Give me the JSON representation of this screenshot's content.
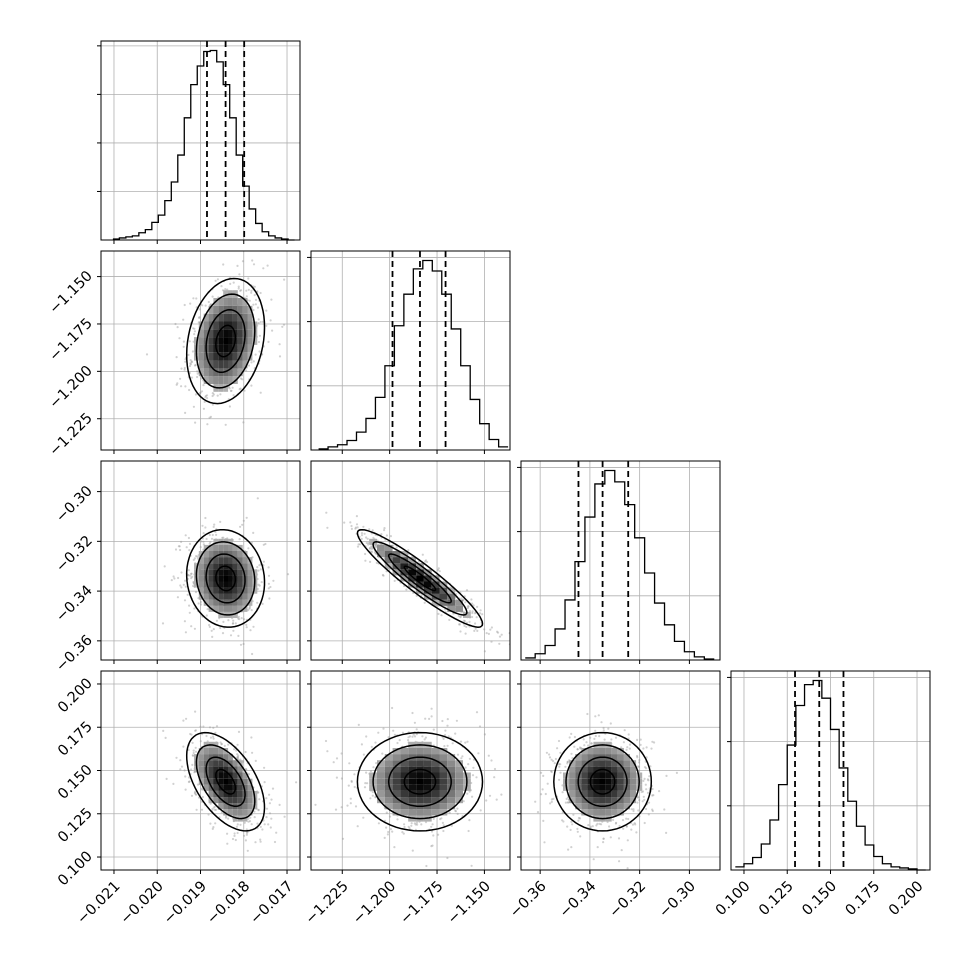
{
  "figure": {
    "type": "corner-plot",
    "description_free": true
  },
  "colors": {
    "axes": "#000000",
    "grid": "#b0b0b0",
    "histogram": "#000000",
    "scatter": "#9a9a9a",
    "contour": "#000000",
    "density_dark": "#000000",
    "density_light": "#ffffff"
  },
  "chart_data": [
    {
      "type": "histogram",
      "panel": [
        0,
        0
      ],
      "parameter_index": 0,
      "xlim": [
        -0.0213,
        -0.0167
      ],
      "bins": [
        -0.02095,
        -0.0208,
        -0.02065,
        -0.0205,
        -0.02035,
        -0.0202,
        -0.02005,
        -0.0199,
        -0.01975,
        -0.0196,
        -0.01945,
        -0.0193,
        -0.01915,
        -0.019,
        -0.01885,
        -0.0187,
        -0.01855,
        -0.0184,
        -0.01825,
        -0.0181,
        -0.01795,
        -0.0178,
        -0.01765,
        -0.0175,
        -0.01735,
        -0.0172,
        -0.01705,
        -0.0169
      ],
      "counts": [
        1,
        2,
        3,
        4,
        7,
        10,
        17,
        24,
        38,
        56,
        82,
        118,
        150,
        168,
        182,
        183,
        172,
        150,
        118,
        82,
        52,
        30,
        16,
        8,
        4,
        2,
        1,
        0
      ],
      "quantiles": [
        -0.01885,
        -0.01842,
        -0.01799
      ],
      "x_ticks": [
        -0.021,
        -0.02,
        -0.019,
        -0.018,
        -0.017
      ],
      "x_tick_labels": [
        "−0.021",
        "−0.020",
        "−0.019",
        "−0.018",
        "−0.017"
      ],
      "y_ticks_count": 4
    },
    {
      "type": "histogram",
      "panel": [
        1,
        1
      ],
      "parameter_index": 1,
      "xlim": [
        -1.2415,
        -1.1365
      ],
      "bins": [
        -1.235,
        -1.23,
        -1.225,
        -1.22,
        -1.215,
        -1.21,
        -1.205,
        -1.2,
        -1.195,
        -1.19,
        -1.185,
        -1.18,
        -1.175,
        -1.17,
        -1.165,
        -1.16,
        -1.155,
        -1.15,
        -1.145,
        -1.14
      ],
      "counts": [
        1,
        3,
        5,
        9,
        17,
        30,
        50,
        80,
        118,
        148,
        172,
        180,
        170,
        148,
        115,
        80,
        48,
        25,
        10,
        3
      ],
      "quantiles": [
        -1.1985,
        -1.184,
        -1.1705
      ],
      "x_ticks": [
        -1.225,
        -1.2,
        -1.175,
        -1.15
      ],
      "x_tick_labels": [
        "−1.225",
        "−1.200",
        "−1.175",
        "−1.150"
      ],
      "y_ticks_count": 3
    },
    {
      "type": "histogram",
      "panel": [
        2,
        2
      ],
      "parameter_index": 2,
      "xlim": [
        -0.3677,
        -0.2877
      ],
      "bins": [
        -0.364,
        -0.36,
        -0.356,
        -0.352,
        -0.348,
        -0.344,
        -0.34,
        -0.336,
        -0.332,
        -0.328,
        -0.324,
        -0.32,
        -0.316,
        -0.312,
        -0.308,
        -0.304,
        -0.3,
        -0.296,
        -0.292
      ],
      "counts": [
        2,
        6,
        14,
        30,
        58,
        95,
        138,
        170,
        183,
        172,
        150,
        118,
        84,
        55,
        34,
        18,
        8,
        3,
        1
      ],
      "quantiles": [
        -0.3446,
        -0.3349,
        -0.3246
      ],
      "x_ticks": [
        -0.36,
        -0.34,
        -0.32,
        -0.3
      ],
      "x_tick_labels": [
        "−0.36",
        "−0.34",
        "−0.32",
        "−0.30"
      ],
      "y_ticks_count": 3
    },
    {
      "type": "histogram",
      "panel": [
        3,
        3
      ],
      "parameter_index": 3,
      "xlim": [
        0.0925,
        0.2075
      ],
      "bins": [
        0.0975,
        0.1025,
        0.1075,
        0.1125,
        0.1175,
        0.1225,
        0.1275,
        0.1325,
        0.1375,
        0.1425,
        0.1475,
        0.1525,
        0.1575,
        0.1625,
        0.1675,
        0.1725,
        0.1775,
        0.1825,
        0.1875,
        0.1925,
        0.1975,
        0.2025
      ],
      "counts": [
        3,
        6,
        12,
        25,
        48,
        82,
        120,
        158,
        178,
        182,
        165,
        135,
        98,
        66,
        42,
        24,
        13,
        6,
        3,
        2,
        1,
        0
      ],
      "quantiles": [
        0.1295,
        0.1435,
        0.1575
      ],
      "x_ticks": [
        0.1,
        0.125,
        0.15,
        0.175,
        0.2
      ],
      "x_tick_labels": [
        "0.100",
        "0.125",
        "0.150",
        "0.175",
        "0.200"
      ],
      "y_ticks_count": 3
    },
    {
      "type": "scatter",
      "subtype": "2d-density-contour",
      "panel": [
        1,
        0
      ],
      "x_parameter": 0,
      "y_parameter": 1,
      "center": [
        -0.01842,
        -1.184
      ],
      "sigma": [
        0.00045,
        0.0165
      ],
      "correlation": 0.22,
      "y_ticks": [
        -1.15,
        -1.175,
        -1.2,
        -1.225
      ],
      "y_tick_labels": [
        "−1.150",
        "−1.175",
        "−1.200",
        "−1.225"
      ]
    },
    {
      "type": "scatter",
      "subtype": "2d-density-contour",
      "panel": [
        2,
        0
      ],
      "x_parameter": 0,
      "y_parameter": 2,
      "center": [
        -0.01842,
        -0.3349
      ],
      "sigma": [
        0.00045,
        0.0098
      ],
      "correlation": -0.08,
      "y_ticks": [
        -0.3,
        -0.32,
        -0.34,
        -0.36
      ],
      "y_tick_labels": [
        "−0.30",
        "−0.32",
        "−0.34",
        "−0.36"
      ]
    },
    {
      "type": "scatter",
      "subtype": "2d-density-contour",
      "panel": [
        2,
        1
      ],
      "x_parameter": 1,
      "y_parameter": 2,
      "center": [
        -1.184,
        -0.3349
      ],
      "sigma": [
        0.0165,
        0.0098
      ],
      "correlation": -0.93
    },
    {
      "type": "scatter",
      "subtype": "2d-density-contour",
      "panel": [
        3,
        0
      ],
      "x_parameter": 0,
      "y_parameter": 3,
      "center": [
        -0.01842,
        0.1435
      ],
      "sigma": [
        0.00045,
        0.0142
      ],
      "correlation": -0.52,
      "y_ticks": [
        0.2,
        0.175,
        0.15,
        0.125,
        0.1
      ],
      "y_tick_labels": [
        "0.200",
        "0.175",
        "0.150",
        "0.125",
        "0.100"
      ]
    },
    {
      "type": "scatter",
      "subtype": "2d-density-contour",
      "panel": [
        3,
        1
      ],
      "x_parameter": 1,
      "y_parameter": 3,
      "center": [
        -1.184,
        0.1435
      ],
      "sigma": [
        0.0165,
        0.0142
      ],
      "correlation": 0.0
    },
    {
      "type": "scatter",
      "subtype": "2d-density-contour",
      "panel": [
        3,
        2
      ],
      "x_parameter": 2,
      "y_parameter": 3,
      "center": [
        -0.3349,
        0.1435
      ],
      "sigma": [
        0.0098,
        0.0142
      ],
      "correlation": 0.0
    }
  ],
  "parameter_ranges": [
    [
      -0.0213,
      -0.0167
    ],
    [
      -1.2415,
      -1.1365
    ],
    [
      -0.3677,
      -0.2877
    ],
    [
      0.0925,
      0.2075
    ]
  ],
  "contour_levels_sigma": [
    0.5,
    1.0,
    1.5,
    2.0
  ],
  "grid": true
}
